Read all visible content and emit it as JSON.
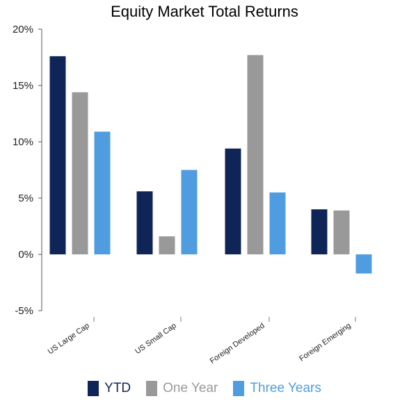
{
  "chart_data": {
    "type": "bar",
    "title": "Equity Market Total Returns",
    "categories": [
      "US Large Cap",
      "US Small Cap",
      "Foreign Developed",
      "Foreign Emerging"
    ],
    "series": [
      {
        "name": "YTD",
        "color": "#0f2557",
        "values": [
          17.6,
          5.6,
          9.4,
          4.0
        ]
      },
      {
        "name": "One Year",
        "color": "#999999",
        "values": [
          14.4,
          1.6,
          17.7,
          3.9
        ]
      },
      {
        "name": "Three Years",
        "color": "#4f9de0",
        "values": [
          10.9,
          7.5,
          5.5,
          -1.7
        ]
      }
    ],
    "ylim": [
      -5,
      20
    ],
    "yticks": [
      -5,
      0,
      5,
      10,
      15,
      20
    ],
    "ytick_labels": [
      "-5%",
      "0%",
      "5%",
      "10%",
      "15%",
      "20%"
    ],
    "xlabel": "",
    "ylabel": "",
    "grid": false,
    "legend_position": "bottom-center"
  }
}
